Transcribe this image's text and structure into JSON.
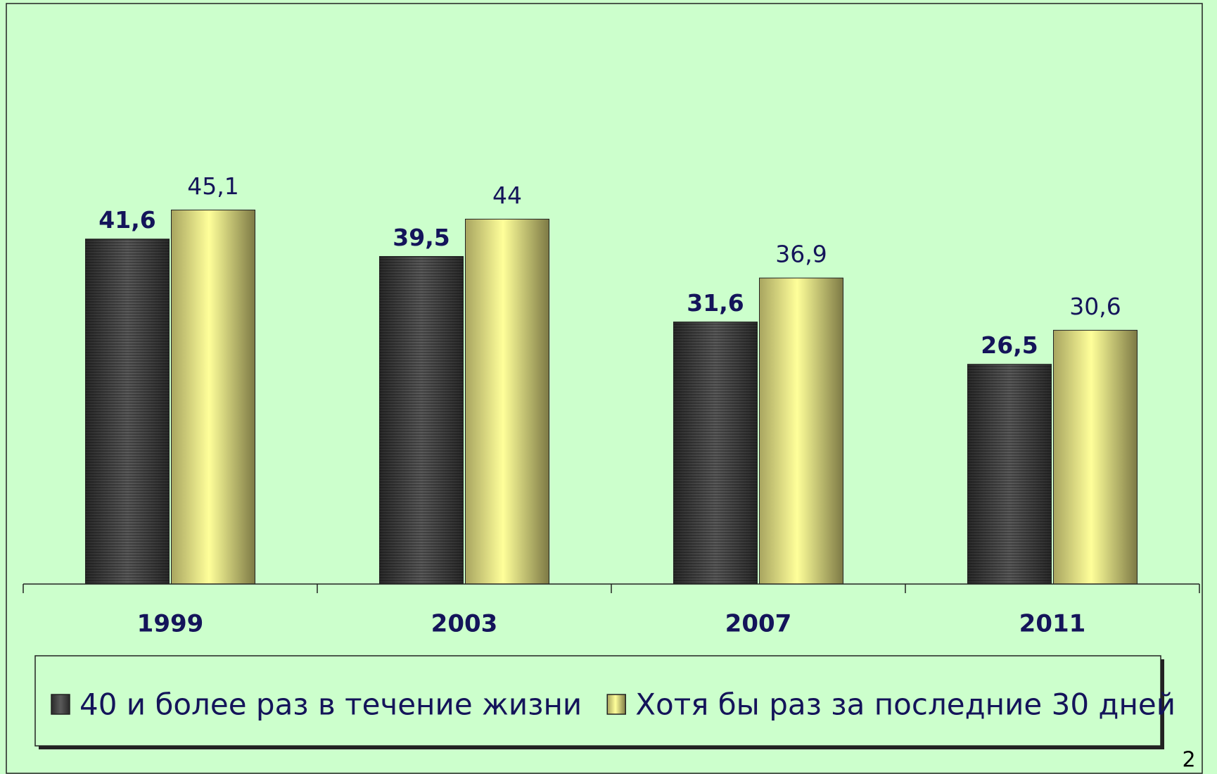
{
  "chart_data": {
    "type": "bar",
    "categories": [
      "1999",
      "2003",
      "2007",
      "2011"
    ],
    "series": [
      {
        "name": "40 и более раз в течение жизни",
        "color": "#4a4a4a",
        "values": [
          41.6,
          39.5,
          31.6,
          26.5
        ],
        "value_labels": [
          "41,6",
          "39,5",
          "31,6",
          "26,5"
        ]
      },
      {
        "name": "Хотя бы раз за последние 30 дней",
        "color": "#f2ee8a",
        "values": [
          45.1,
          44,
          36.9,
          30.6
        ],
        "value_labels": [
          "45,1",
          "44",
          "36,9",
          "30,6"
        ]
      }
    ],
    "ylim": [
      0,
      70
    ],
    "legend": "bottom"
  },
  "page_number": "2"
}
